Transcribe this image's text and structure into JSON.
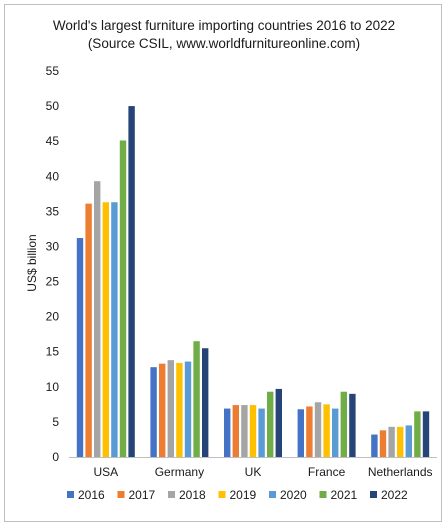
{
  "chart_data": {
    "type": "bar",
    "title": "World's largest furniture importing countries 2016 to 2022",
    "subtitle": "(Source CSIL, www.worldfurnitureonline.com)",
    "xlabel": "",
    "ylabel": "US$ billion",
    "ylim": [
      0,
      55
    ],
    "yticks": [
      0,
      5,
      10,
      15,
      20,
      25,
      30,
      35,
      40,
      45,
      50,
      55
    ],
    "grid": false,
    "legend_position": "bottom",
    "categories": [
      "USA",
      "Germany",
      "UK",
      "France",
      "Netherlands"
    ],
    "series": [
      {
        "name": "2016",
        "color": "#4472c4",
        "values": [
          31.2,
          12.8,
          6.9,
          6.8,
          3.2
        ]
      },
      {
        "name": "2017",
        "color": "#ed7d31",
        "values": [
          36.1,
          13.3,
          7.4,
          7.2,
          3.8
        ]
      },
      {
        "name": "2018",
        "color": "#a5a5a5",
        "values": [
          39.3,
          13.8,
          7.4,
          7.8,
          4.3
        ]
      },
      {
        "name": "2019",
        "color": "#ffc000",
        "values": [
          36.3,
          13.4,
          7.4,
          7.5,
          4.3
        ]
      },
      {
        "name": "2020",
        "color": "#5b9bd5",
        "values": [
          36.3,
          13.6,
          6.9,
          6.9,
          4.5
        ]
      },
      {
        "name": "2021",
        "color": "#70ad47",
        "values": [
          45.1,
          16.5,
          9.3,
          9.3,
          6.5
        ]
      },
      {
        "name": "2022",
        "color": "#264478",
        "values": [
          50.0,
          15.5,
          9.7,
          9.0,
          6.5
        ]
      }
    ]
  }
}
